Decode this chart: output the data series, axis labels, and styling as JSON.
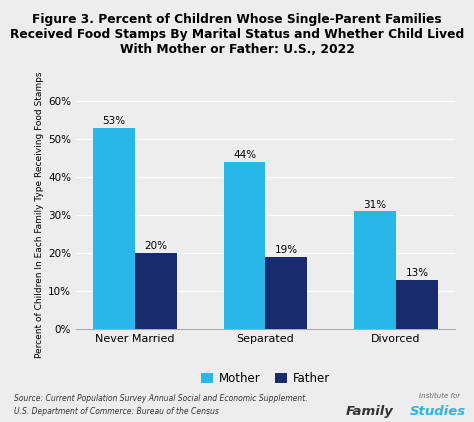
{
  "title": "Figure 3. Percent of Children Whose Single-Parent Families\nReceived Food Stamps By Marital Status and Whether Child Lived\nWith Mother or Father: U.S., 2022",
  "categories": [
    "Never Married",
    "Separated",
    "Divorced"
  ],
  "mother_values": [
    53,
    44,
    31
  ],
  "father_values": [
    20,
    19,
    13
  ],
  "mother_color": "#29B6E8",
  "father_color": "#1A2B6B",
  "ylabel": "Percent of Children In Each Family Type Receiving Food Stamps",
  "ylim": [
    0,
    60
  ],
  "yticks": [
    0,
    10,
    20,
    30,
    40,
    50,
    60
  ],
  "ytick_labels": [
    "0%",
    "10%",
    "20%",
    "30%",
    "40%",
    "50%",
    "60%"
  ],
  "legend_labels": [
    "Mother",
    "Father"
  ],
  "source_line1": "Source: Current Population Survey Annual Social and Economic Supplement.",
  "source_line2": "U.S. Department of Commerce: Bureau of the Census",
  "background_color": "#EDEDED",
  "bar_width": 0.32,
  "title_fontsize": 8.8,
  "axis_label_fontsize": 6.5,
  "tick_fontsize": 7.5,
  "annotation_fontsize": 7.5,
  "legend_fontsize": 8.5
}
